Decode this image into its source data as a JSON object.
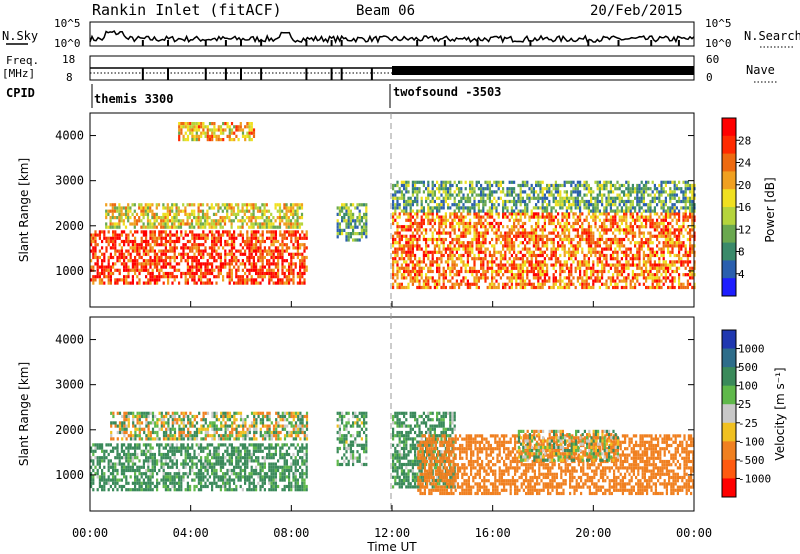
{
  "header": {
    "title": "Rankin Inlet (fitACF)",
    "beam": "Beam 06",
    "date": "20/Feb/2015"
  },
  "top_panels": {
    "nsky_label": "N.Sky",
    "nsky_ticks": [
      "10^5",
      "10^0"
    ],
    "nsearch_label": "N.Search",
    "nsearch_ticks": [
      "10^5",
      "10^0"
    ],
    "freq_label": "Freq.",
    "freq_unit": "[MHz]",
    "freq_ticks": [
      "18",
      "8"
    ],
    "nave_label": "Nave",
    "nave_ticks": [
      "60",
      "0"
    ],
    "cpid_label": "CPID",
    "cpid_segments": [
      {
        "name": "themis",
        "value": "3300",
        "start_hour": 0
      },
      {
        "name": "twofsound",
        "value": "-3503",
        "start_hour": 12
      }
    ]
  },
  "x_axis": {
    "label": "Time UT",
    "ticks": [
      "00:00",
      "04:00",
      "08:00",
      "12:00",
      "16:00",
      "20:00",
      "00:00"
    ],
    "range_hours": [
      0,
      24
    ]
  },
  "chart_data": [
    {
      "type": "heatmap",
      "panel": "power",
      "ylabel": "Slant Range [km]",
      "yticks": [
        "1000",
        "2000",
        "3000",
        "4000"
      ],
      "ylim": [
        200,
        4500
      ],
      "xlim": [
        0,
        24
      ],
      "colorbar": {
        "label": "Power [dB]",
        "ticks": [
          "28",
          "24",
          "20",
          "16",
          "12",
          "8",
          "4"
        ],
        "range": [
          0,
          30
        ],
        "colors": [
          "#1e1eff",
          "#2a5fae",
          "#3a8a6a",
          "#6aa84f",
          "#b5d43c",
          "#f0e020",
          "#f0a020",
          "#ee6a10",
          "#ff2a00",
          "#ff0000"
        ]
      },
      "series": [
        {
          "x_start": 0.0,
          "x_end": 8.6,
          "r_min": 700,
          "r_max": 1900,
          "value": 25
        },
        {
          "x_start": 0.6,
          "x_end": 8.4,
          "r_min": 1950,
          "r_max": 2500,
          "value": 16
        },
        {
          "x_start": 3.5,
          "x_end": 6.5,
          "r_min": 3900,
          "r_max": 4300,
          "value": 18
        },
        {
          "x_start": 9.8,
          "x_end": 11.0,
          "r_min": 1700,
          "r_max": 2500,
          "value": 10
        },
        {
          "x_start": 12.0,
          "x_end": 24.0,
          "r_min": 600,
          "r_max": 2300,
          "value": 22
        },
        {
          "x_start": 12.0,
          "x_end": 24.0,
          "r_min": 2300,
          "r_max": 3000,
          "value": 10
        }
      ]
    },
    {
      "type": "heatmap",
      "panel": "velocity",
      "ylabel": "Slant Range [km]",
      "yticks": [
        "1000",
        "2000",
        "3000",
        "4000"
      ],
      "ylim": [
        200,
        4500
      ],
      "xlim": [
        0,
        24
      ],
      "colorbar": {
        "label": "Velocity [m s⁻¹]",
        "ticks": [
          "1000",
          "500",
          "100",
          "25",
          "-25",
          "-100",
          "-500",
          "-1000"
        ],
        "colors": [
          "#2038b0",
          "#2e6d8a",
          "#3a8a5a",
          "#5fb84a",
          "#c8c8c8",
          "#f0c020",
          "#f08020",
          "#ff5a10",
          "#ff0000"
        ]
      },
      "series": [
        {
          "x_start": 0.0,
          "x_end": 8.6,
          "r_min": 700,
          "r_max": 1700,
          "value": 200
        },
        {
          "x_start": 0.8,
          "x_end": 8.6,
          "r_min": 1800,
          "r_max": 2400,
          "value": 0
        },
        {
          "x_start": 9.8,
          "x_end": 11.0,
          "r_min": 1200,
          "r_max": 2400,
          "value": 150
        },
        {
          "x_start": 12.0,
          "x_end": 14.5,
          "r_min": 700,
          "r_max": 2400,
          "value": 200
        },
        {
          "x_start": 13.0,
          "x_end": 24.0,
          "r_min": 600,
          "r_max": 1900,
          "value": -300
        },
        {
          "x_start": 17.0,
          "x_end": 21.0,
          "r_min": 1300,
          "r_max": 2000,
          "value": 0
        }
      ]
    }
  ]
}
